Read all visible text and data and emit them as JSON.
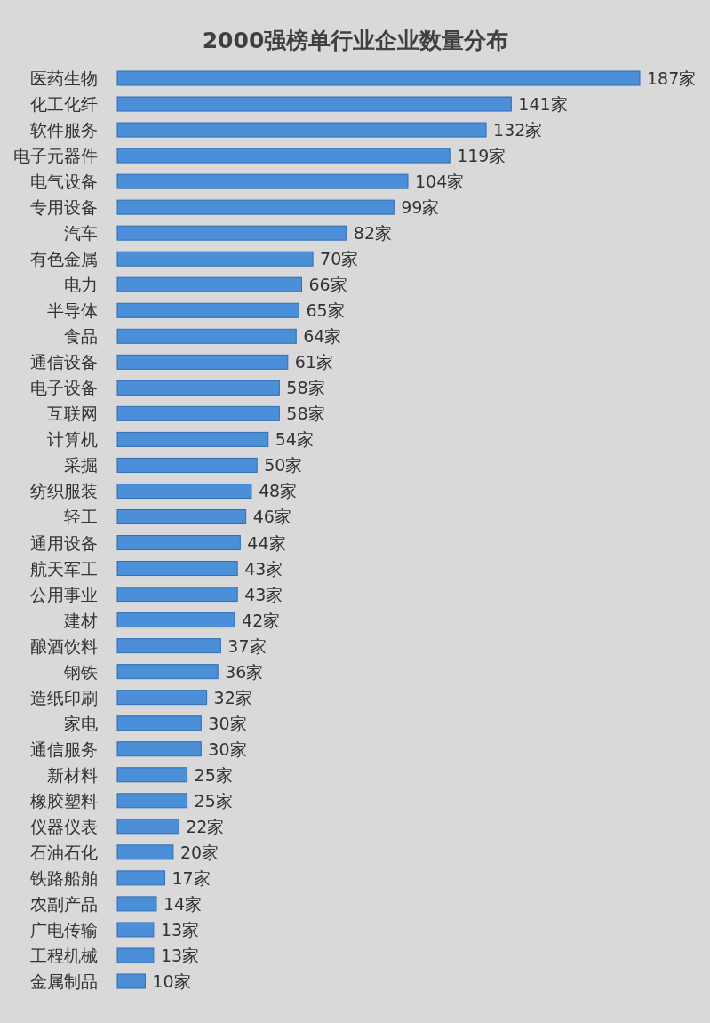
{
  "chart_data": {
    "type": "bar",
    "orientation": "horizontal",
    "title": "2000强榜单行业企业数量分布",
    "categories": [
      "医药生物",
      "化工化纤",
      "软件服务",
      "电子元器件",
      "电气设备",
      "专用设备",
      "汽车",
      "有色金属",
      "电力",
      "半导体",
      "食品",
      "通信设备",
      "电子设备",
      "互联网",
      "计算机",
      "采掘",
      "纺织服装",
      "轻工",
      "通用设备",
      "航天军工",
      "公用事业",
      "建材",
      "酿酒饮料",
      "钢铁",
      "造纸印刷",
      "家电",
      "通信服务",
      "新材料",
      "橡胶塑料",
      "仪器仪表",
      "石油石化",
      "铁路船舶",
      "农副产品",
      "广电传输",
      "工程机械",
      "金属制品"
    ],
    "values": [
      187,
      141,
      132,
      119,
      104,
      99,
      82,
      70,
      66,
      65,
      64,
      61,
      58,
      58,
      54,
      50,
      48,
      46,
      44,
      43,
      43,
      42,
      37,
      36,
      32,
      30,
      30,
      25,
      25,
      22,
      20,
      17,
      14,
      13,
      13,
      10
    ],
    "value_labels": [
      "187家",
      "141家",
      "132家",
      "119家",
      "104家",
      "99家",
      "82家",
      "70家",
      "66家",
      "65家",
      "64家",
      "61家",
      "58家",
      "58家",
      "54家",
      "50家",
      "48家",
      "46家",
      "44家",
      "43家",
      "43家",
      "42家",
      "37家",
      "36家",
      "32家",
      "30家",
      "30家",
      "25家",
      "25家",
      "22家",
      "20家",
      "17家",
      "14家",
      "13家",
      "13家",
      "10家"
    ],
    "color": "#4a8fd8"
  }
}
